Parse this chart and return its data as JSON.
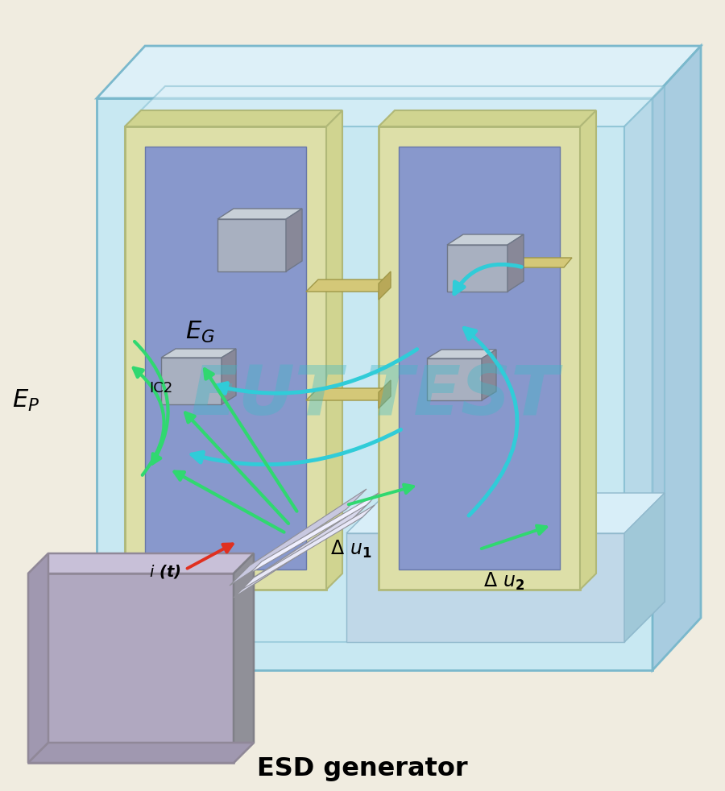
{
  "bg": "#f0ece0",
  "cab_front": "#c8e8f2",
  "cab_top": "#ddf0f8",
  "cab_right": "#a8cce0",
  "cab_edge": "#7ab8cc",
  "panel_frame": "#dddfa8",
  "panel_frame_edge": "#b0b878",
  "panel_frame_top": "#d0d490",
  "panel_blue": "#8898cc",
  "panel_blue_edge": "#6878a8",
  "gray_box_front": "#a8b0c0",
  "gray_box_top": "#c8d0d8",
  "gray_box_right": "#888898",
  "connector": "#d4c878",
  "connector_edge": "#a09848",
  "gen_front": "#b0a8c0",
  "gen_top": "#c8c0d8",
  "gen_right": "#908898",
  "gen_left": "#988898",
  "nozzle1": "#d8d8ec",
  "nozzle2": "#e8e8f4",
  "nozzle3": "#c0c0d8",
  "shelf_front": "#c0d8e8",
  "shelf_top": "#d8eef8",
  "cyan": "#30ccd8",
  "green": "#30d870",
  "red": "#e03020",
  "watermark_color": "#40b8c8",
  "watermark_alpha": 0.38,
  "title": "ESD generator"
}
